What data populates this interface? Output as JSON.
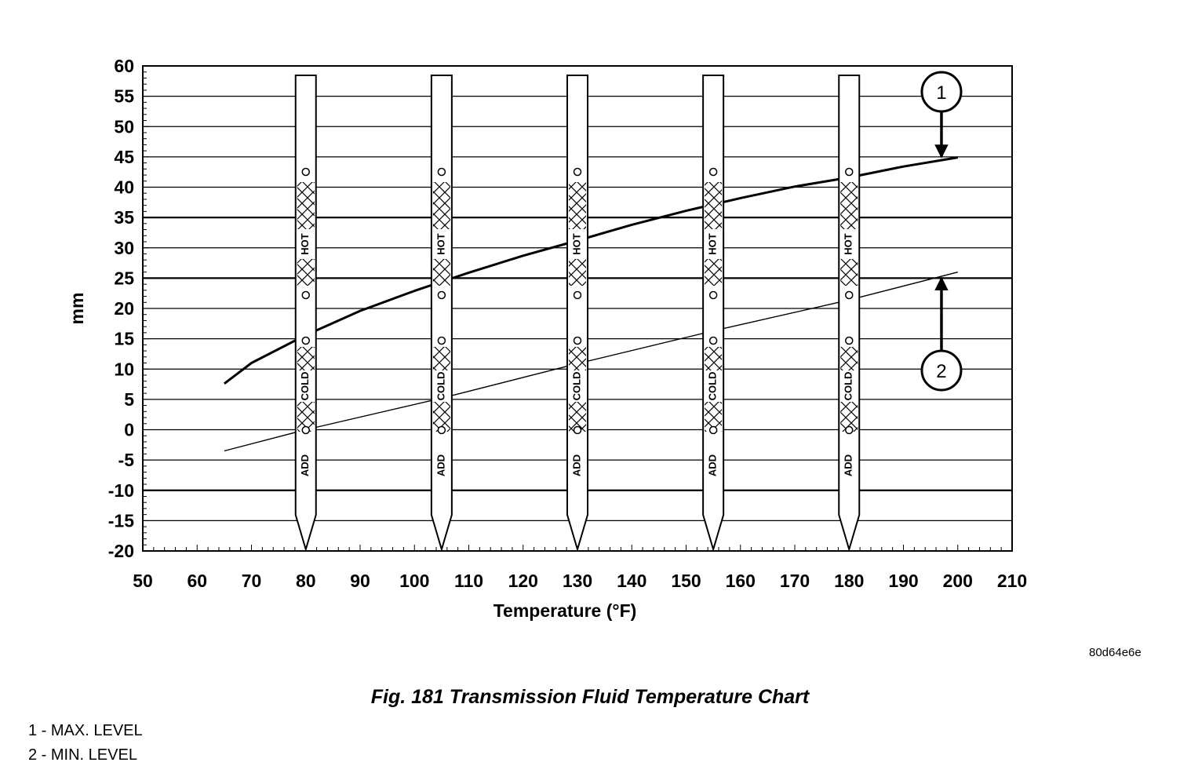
{
  "chart_data": {
    "type": "line",
    "xlabel": "Temperature (°F)",
    "ylabel": "mm",
    "xlim": [
      50,
      210
    ],
    "ylim": [
      -20,
      60
    ],
    "x_ticks": [
      "50",
      "60",
      "70",
      "80",
      "90",
      "100",
      "110",
      "120",
      "130",
      "140",
      "150",
      "160",
      "170",
      "180",
      "190",
      "200",
      "210"
    ],
    "y_ticks": [
      "-20",
      "-15",
      "-10",
      "-5",
      "0",
      "5",
      "10",
      "15",
      "20",
      "25",
      "30",
      "35",
      "40",
      "45",
      "50",
      "55",
      "60"
    ],
    "grid": "horizontal",
    "series": [
      {
        "callout": "1",
        "x": [
          65,
          70,
          80,
          90,
          100,
          105,
          110,
          120,
          130,
          140,
          150,
          160,
          170,
          180,
          190,
          200
        ],
        "y": [
          7.6,
          11.0,
          15.6,
          19.6,
          22.9,
          24.4,
          25.9,
          28.7,
          31.2,
          33.8,
          36.1,
          38.2,
          40.1,
          41.6,
          43.4,
          44.9
        ]
      },
      {
        "callout": "2",
        "x": [
          65,
          80,
          105,
          130,
          155,
          180,
          200
        ],
        "y": [
          -3.5,
          0,
          5.2,
          10.9,
          16.3,
          21.4,
          26.0
        ]
      }
    ],
    "dipsticks": [
      {
        "temperature": 80,
        "labels": [
          "HOT",
          "COLD",
          "ADD"
        ]
      },
      {
        "temperature": 105,
        "labels": [
          "HOT",
          "COLD",
          "ADD"
        ]
      },
      {
        "temperature": 130,
        "labels": [
          "HOT",
          "COLD",
          "ADD"
        ]
      },
      {
        "temperature": 155,
        "labels": [
          "HOT",
          "COLD",
          "ADD"
        ]
      },
      {
        "temperature": 180,
        "labels": [
          "HOT",
          "COLD",
          "ADD"
        ]
      }
    ],
    "callouts": [
      {
        "label": "1",
        "target_x": 197,
        "target_y": 44.6
      },
      {
        "label": "2",
        "target_x": 197,
        "target_y": 25.4
      }
    ]
  },
  "ref_code": "80d64e6e",
  "caption": "Fig. 181 Transmission Fluid Temperature Chart",
  "legend": [
    "1 - MAX. LEVEL",
    "2 - MIN. LEVEL"
  ]
}
